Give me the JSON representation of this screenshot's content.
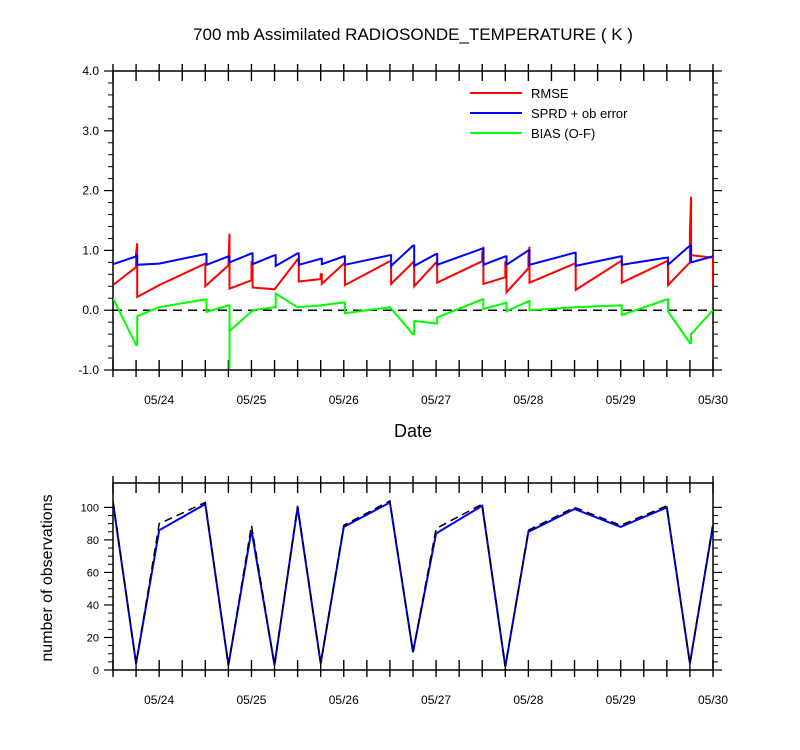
{
  "chart_data": [
    {
      "type": "line",
      "title": "700 mb Assimilated RADIOSONDE_TEMPERATURE ( K )",
      "xlabel": "Date",
      "ylabel": "",
      "ylim": [
        -1.0,
        4.0
      ],
      "yticks": [
        {
          "value": -1.0,
          "label": "-1.0"
        },
        {
          "value": 0.0,
          "label": "0.0"
        },
        {
          "value": 1.0,
          "label": "1.0"
        },
        {
          "value": 2.0,
          "label": "2.0"
        },
        {
          "value": 3.0,
          "label": "3.0"
        },
        {
          "value": 4.0,
          "label": "4.0"
        }
      ],
      "xlim": [
        "05/23 12Z",
        "05/30 00Z"
      ],
      "xticks": [
        "05/24",
        "05/25",
        "05/26",
        "05/27",
        "05/28",
        "05/29",
        "05/30"
      ],
      "legend_position": "top-right",
      "zero_line": "dashed",
      "series": [
        {
          "name": "RMSE",
          "color": "#ff0000",
          "points": [
            [
              0.0,
              0.42
            ],
            [
              1.0,
              0.72
            ],
            [
              1.0,
              0.72
            ],
            [
              1.0,
              0.95
            ],
            [
              1.0,
              0.95
            ],
            [
              1.05,
              1.12
            ],
            [
              1.05,
              0.22
            ],
            [
              2.0,
              0.42
            ],
            [
              4.0,
              0.78
            ],
            [
              4.0,
              0.78
            ],
            [
              4.0,
              0.4
            ],
            [
              5.0,
              0.75
            ],
            [
              5.0,
              0.75
            ],
            [
              5.05,
              1.28
            ],
            [
              5.05,
              0.36
            ],
            [
              6.0,
              0.5
            ],
            [
              6.0,
              0.8
            ],
            [
              6.05,
              0.8
            ],
            [
              6.05,
              0.38
            ],
            [
              7.0,
              0.35
            ],
            [
              8.0,
              0.85
            ],
            [
              8.05,
              0.85
            ],
            [
              8.05,
              0.48
            ],
            [
              9.0,
              0.52
            ],
            [
              9.0,
              0.6
            ],
            [
              9.05,
              0.6
            ],
            [
              9.05,
              0.44
            ],
            [
              10.0,
              0.78
            ],
            [
              10.05,
              0.78
            ],
            [
              10.05,
              0.42
            ],
            [
              12.0,
              0.82
            ],
            [
              12.05,
              0.82
            ],
            [
              12.05,
              0.44
            ],
            [
              13.0,
              0.8
            ],
            [
              13.05,
              0.8
            ],
            [
              13.05,
              0.4
            ],
            [
              14.0,
              0.8
            ],
            [
              14.05,
              0.8
            ],
            [
              14.05,
              0.46
            ],
            [
              16.0,
              0.82
            ],
            [
              16.0,
              0.95
            ],
            [
              16.05,
              1.06
            ],
            [
              16.05,
              0.44
            ],
            [
              17.0,
              0.55
            ],
            [
              17.0,
              0.8
            ],
            [
              17.05,
              0.8
            ],
            [
              17.05,
              0.3
            ],
            [
              18.0,
              0.7
            ],
            [
              18.0,
              0.9
            ],
            [
              18.05,
              1.06
            ],
            [
              18.05,
              0.46
            ],
            [
              20.0,
              0.78
            ],
            [
              20.05,
              0.78
            ],
            [
              20.05,
              0.34
            ],
            [
              22.0,
              0.82
            ],
            [
              22.05,
              0.82
            ],
            [
              22.05,
              0.46
            ],
            [
              24.0,
              0.82
            ],
            [
              24.05,
              0.82
            ],
            [
              24.05,
              0.42
            ],
            [
              25.0,
              0.8
            ],
            [
              25.0,
              1.3
            ],
            [
              25.05,
              1.9
            ],
            [
              25.05,
              0.92
            ],
            [
              26.0,
              0.88
            ],
            [
              26.0,
              0.42
            ]
          ]
        },
        {
          "name": "SPRD + ob error",
          "color": "#0000ff",
          "points": [
            [
              0.0,
              0.77
            ],
            [
              1.0,
              0.9
            ],
            [
              1.0,
              0.92
            ],
            [
              1.05,
              0.92
            ],
            [
              1.05,
              0.76
            ],
            [
              2.0,
              0.78
            ],
            [
              4.0,
              0.94
            ],
            [
              4.05,
              0.94
            ],
            [
              4.05,
              0.76
            ],
            [
              5.0,
              0.9
            ],
            [
              5.05,
              0.9
            ],
            [
              5.05,
              0.8
            ],
            [
              6.0,
              0.95
            ],
            [
              6.05,
              0.95
            ],
            [
              6.05,
              0.77
            ],
            [
              7.0,
              0.92
            ],
            [
              7.05,
              0.92
            ],
            [
              7.05,
              0.74
            ],
            [
              8.0,
              0.95
            ],
            [
              8.05,
              0.95
            ],
            [
              8.05,
              0.76
            ],
            [
              9.0,
              0.86
            ],
            [
              9.05,
              0.86
            ],
            [
              9.05,
              0.77
            ],
            [
              10.0,
              0.9
            ],
            [
              10.05,
              0.9
            ],
            [
              10.05,
              0.76
            ],
            [
              12.0,
              0.92
            ],
            [
              12.05,
              0.92
            ],
            [
              12.05,
              0.74
            ],
            [
              13.0,
              1.08
            ],
            [
              13.05,
              1.08
            ],
            [
              13.05,
              0.74
            ],
            [
              14.0,
              0.94
            ],
            [
              14.05,
              0.94
            ],
            [
              14.05,
              0.76
            ],
            [
              16.0,
              1.03
            ],
            [
              16.05,
              1.03
            ],
            [
              16.05,
              0.76
            ],
            [
              17.0,
              0.9
            ],
            [
              17.05,
              0.9
            ],
            [
              17.05,
              0.76
            ],
            [
              18.0,
              1.0
            ],
            [
              18.05,
              1.0
            ],
            [
              18.05,
              0.76
            ],
            [
              20.0,
              0.96
            ],
            [
              20.05,
              0.96
            ],
            [
              20.05,
              0.74
            ],
            [
              22.0,
              0.9
            ],
            [
              22.05,
              0.9
            ],
            [
              22.05,
              0.76
            ],
            [
              24.0,
              0.88
            ],
            [
              24.05,
              0.88
            ],
            [
              24.05,
              0.76
            ],
            [
              25.0,
              1.08
            ],
            [
              25.05,
              1.08
            ],
            [
              25.05,
              0.8
            ],
            [
              26.0,
              0.9
            ]
          ]
        },
        {
          "name": "BIAS (O-F)",
          "color": "#00ff00",
          "points": [
            [
              0.0,
              0.2
            ],
            [
              1.0,
              -0.58
            ],
            [
              1.05,
              -0.58
            ],
            [
              1.05,
              -0.1
            ],
            [
              2.0,
              0.05
            ],
            [
              4.0,
              0.18
            ],
            [
              4.05,
              0.18
            ],
            [
              4.05,
              -0.03
            ],
            [
              5.0,
              0.08
            ],
            [
              5.05,
              0.08
            ],
            [
              5.05,
              -0.98
            ],
            [
              5.05,
              -0.35
            ],
            [
              6.0,
              -0.02
            ],
            [
              6.05,
              -0.02
            ],
            [
              6.05,
              0.0
            ],
            [
              7.0,
              0.05
            ],
            [
              7.05,
              0.05
            ],
            [
              7.05,
              0.28
            ],
            [
              8.0,
              0.05
            ],
            [
              9.0,
              0.08
            ],
            [
              10.0,
              0.13
            ],
            [
              10.05,
              0.13
            ],
            [
              10.05,
              -0.05
            ],
            [
              12.0,
              0.05
            ],
            [
              13.0,
              -0.4
            ],
            [
              13.05,
              -0.4
            ],
            [
              13.05,
              -0.18
            ],
            [
              14.0,
              -0.22
            ],
            [
              14.05,
              -0.22
            ],
            [
              14.05,
              -0.12
            ],
            [
              16.0,
              0.18
            ],
            [
              16.05,
              0.18
            ],
            [
              16.05,
              0.02
            ],
            [
              17.0,
              0.12
            ],
            [
              17.05,
              0.12
            ],
            [
              17.05,
              -0.02
            ],
            [
              18.0,
              0.15
            ],
            [
              18.05,
              0.15
            ],
            [
              18.05,
              0.0
            ],
            [
              20.0,
              0.05
            ],
            [
              22.0,
              0.08
            ],
            [
              22.05,
              0.08
            ],
            [
              22.05,
              -0.08
            ],
            [
              24.0,
              0.18
            ],
            [
              24.05,
              0.18
            ],
            [
              24.05,
              -0.02
            ],
            [
              25.0,
              -0.55
            ],
            [
              25.05,
              -0.55
            ],
            [
              25.05,
              -0.4
            ],
            [
              26.0,
              0.0
            ]
          ]
        }
      ]
    },
    {
      "type": "line",
      "title": "",
      "xlabel": "",
      "ylabel": "number of observations",
      "ylim": [
        0,
        115
      ],
      "yticks": [
        {
          "value": 0,
          "label": "0"
        },
        {
          "value": 20,
          "label": "20"
        },
        {
          "value": 40,
          "label": "40"
        },
        {
          "value": 60,
          "label": "60"
        },
        {
          "value": 80,
          "label": "80"
        },
        {
          "value": 100,
          "label": "100"
        }
      ],
      "xlim": [
        "05/23 12Z",
        "05/30 00Z"
      ],
      "xticks": [
        "05/24",
        "05/25",
        "05/26",
        "05/27",
        "05/28",
        "05/29",
        "05/30"
      ],
      "series": [
        {
          "style": "solid",
          "color": "#0000ff",
          "points": [
            [
              0.0,
              103
            ],
            [
              1.0,
              4
            ],
            [
              2.0,
              86
            ],
            [
              4.0,
              102
            ],
            [
              5.0,
              3
            ],
            [
              6.0,
              86
            ],
            [
              7.0,
              3
            ],
            [
              8.0,
              100
            ],
            [
              9.0,
              4
            ],
            [
              10.0,
              88
            ],
            [
              12.0,
              103
            ],
            [
              13.0,
              11
            ],
            [
              14.0,
              84
            ],
            [
              16.0,
              101
            ],
            [
              17.0,
              2
            ],
            [
              18.0,
              85
            ],
            [
              20.0,
              99
            ],
            [
              22.0,
              88
            ],
            [
              24.0,
              100
            ],
            [
              25.0,
              4
            ],
            [
              26.0,
              89
            ]
          ]
        },
        {
          "style": "dashed",
          "color": "#000000",
          "points": [
            [
              0.0,
              104
            ],
            [
              1.0,
              4
            ],
            [
              2.0,
              90
            ],
            [
              4.0,
              103
            ],
            [
              5.0,
              3
            ],
            [
              6.0,
              89
            ],
            [
              7.0,
              3
            ],
            [
              8.0,
              101
            ],
            [
              9.0,
              4
            ],
            [
              10.0,
              89
            ],
            [
              12.0,
              104
            ],
            [
              13.0,
              11
            ],
            [
              14.0,
              87
            ],
            [
              16.0,
              102
            ],
            [
              17.0,
              2
            ],
            [
              18.0,
              86
            ],
            [
              20.0,
              100
            ],
            [
              22.0,
              89
            ],
            [
              24.0,
              101
            ],
            [
              25.0,
              4
            ],
            [
              26.0,
              90
            ]
          ]
        }
      ]
    }
  ]
}
